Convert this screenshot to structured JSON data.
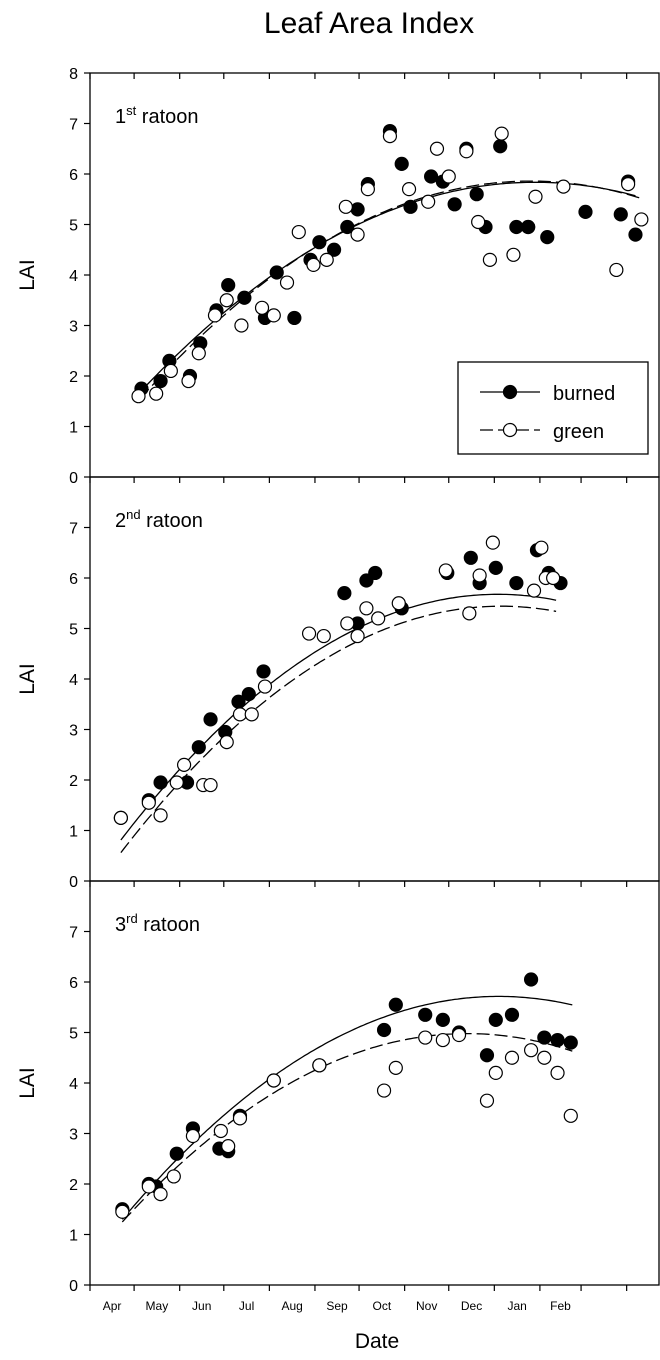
{
  "title": "Leaf Area Index",
  "xlabel": "Date",
  "ylabel": "LAI",
  "x_tick_labels": [
    "Apr",
    "May",
    "Jun",
    "Jul",
    "Aug",
    "Sep",
    "Oct",
    "Nov",
    "Dec",
    "Jan",
    "Feb"
  ],
  "legend": {
    "burned": "burned",
    "green": "green"
  },
  "panels": [
    {
      "label_base": "1",
      "label_sup": "st",
      "label_rest": " ratoon"
    },
    {
      "label_base": "2",
      "label_sup": "nd",
      "label_rest": " ratoon"
    },
    {
      "label_base": "3",
      "label_sup": "rd",
      "label_rest": " ratoon"
    }
  ],
  "chart_data": [
    {
      "type": "scatter",
      "panel": "1st ratoon",
      "xlabel": "Date",
      "ylabel": "LAI",
      "xlim": [
        "Apr",
        "Feb"
      ],
      "ylim": [
        0,
        8
      ],
      "yticks": [
        0,
        1,
        2,
        3,
        4,
        5,
        6,
        7,
        8
      ],
      "legend_position": "right",
      "series": [
        {
          "name": "burned",
          "marker": "filled",
          "line": "solid",
          "x": [
            "Apr 22",
            "Apr 28",
            "May 3",
            "May 10",
            "May 15",
            "May 22",
            "May 28",
            "Jun 8",
            "Jun 16",
            "Jun 24",
            "Jul 1",
            "Jul 10",
            "Jul 15",
            "Jul 22",
            "Jul 28",
            "Aug 5",
            "Aug 12",
            "Aug 20",
            "Aug 27",
            "Sep 2",
            "Sep 10",
            "Sep 14",
            "Sep 25",
            "Oct 1",
            "Oct 8",
            "Oct 13",
            "Oct 17",
            "Nov 3",
            "Nov 10",
            "Nov 14",
            "Nov 28",
            "Dec 8",
            "Dec 15",
            "Jan 1",
            "Jan 21",
            "Feb 3",
            "Feb 14",
            "Feb 17",
            "Feb 20",
            "Feb 24",
            "Mar 1"
          ],
          "y": [
            1.75,
            1.9,
            2.3,
            2.0,
            2.65,
            3.3,
            3.8,
            3.55,
            3.15,
            4.05,
            3.15,
            4.3,
            4.65,
            4.5,
            4.95,
            5.3,
            5.8,
            6.85,
            6.2,
            5.35,
            5.95,
            5.85,
            5.4,
            6.5,
            5.6,
            4.95,
            6.55,
            4.95,
            4.95,
            4.75,
            4.95,
            4.3,
            5.8,
            5.85,
            4.3,
            5.25,
            5.25,
            5.2,
            5.85,
            4.8,
            4.8
          ],
          "points": [
            [
              13,
              1.75
            ],
            [
              26,
              1.9
            ],
            [
              32,
              2.3
            ],
            [
              46,
              2.0
            ],
            [
              53,
              2.65
            ],
            [
              64,
              3.3
            ],
            [
              72,
              3.8
            ],
            [
              83,
              3.55
            ],
            [
              97,
              3.15
            ],
            [
              105,
              4.05
            ],
            [
              117,
              3.15
            ],
            [
              128,
              4.3
            ],
            [
              134,
              4.65
            ],
            [
              144,
              4.5
            ],
            [
              153,
              4.95
            ],
            [
              160,
              5.3
            ],
            [
              167,
              5.8
            ],
            [
              182,
              6.85
            ],
            [
              190,
              6.2
            ],
            [
              196,
              5.35
            ],
            [
              210,
              5.95
            ],
            [
              218,
              5.85
            ],
            [
              226,
              5.4
            ],
            [
              234,
              6.5
            ],
            [
              241,
              5.6
            ],
            [
              247,
              4.95
            ],
            [
              257,
              6.55
            ],
            [
              268,
              4.95
            ],
            [
              276,
              4.95
            ],
            [
              289,
              4.75
            ],
            [
              315,
              5.25
            ],
            [
              276,
              4.95
            ],
            [
              339,
              5.2
            ],
            [
              344,
              5.85
            ],
            [
              349,
              4.8
            ]
          ]
        },
        {
          "name": "green",
          "marker": "open",
          "line": "dashed",
          "points": [
            [
              11,
              1.6
            ],
            [
              23,
              1.65
            ],
            [
              33,
              2.1
            ],
            [
              45,
              1.9
            ],
            [
              52,
              2.45
            ],
            [
              63,
              3.2
            ],
            [
              71,
              3.5
            ],
            [
              81,
              3.0
            ],
            [
              95,
              3.35
            ],
            [
              103,
              3.2
            ],
            [
              112,
              3.85
            ],
            [
              120,
              4.85
            ],
            [
              130,
              4.2
            ],
            [
              139,
              4.3
            ],
            [
              152,
              5.35
            ],
            [
              160,
              4.8
            ],
            [
              167,
              5.7
            ],
            [
              182,
              6.75
            ],
            [
              195,
              5.7
            ],
            [
              208,
              5.45
            ],
            [
              214,
              6.5
            ],
            [
              222,
              5.95
            ],
            [
              234,
              6.45
            ],
            [
              242,
              5.05
            ],
            [
              250,
              4.3
            ],
            [
              258,
              6.8
            ],
            [
              266,
              4.4
            ],
            [
              281,
              5.55
            ],
            [
              300,
              5.75
            ],
            [
              336,
              4.1
            ],
            [
              344,
              5.8
            ],
            [
              353,
              5.1
            ]
          ]
        }
      ],
      "fit_curves": [
        {
          "series": "burned",
          "x": [
            7,
            349
          ],
          "poly": [
            1.3,
            0.0323,
            -5.75e-05
          ]
        },
        {
          "series": "green",
          "x": [
            12,
            353
          ],
          "poly": [
            1.15,
            0.0339,
            -6.1e-05
          ]
        }
      ]
    },
    {
      "type": "scatter",
      "panel": "2nd ratoon",
      "xlabel": "Date",
      "ylabel": "LAI",
      "xlim": [
        "Apr",
        "Feb"
      ],
      "ylim": [
        0,
        8
      ],
      "yticks": [
        0,
        1,
        2,
        3,
        4,
        5,
        6,
        7
      ],
      "series": [
        {
          "name": "burned",
          "marker": "filled",
          "line": "solid",
          "points": [
            [
              -1,
              1.25
            ],
            [
              18,
              1.6
            ],
            [
              26,
              1.95
            ],
            [
              44,
              1.95
            ],
            [
              52,
              2.65
            ],
            [
              60,
              3.2
            ],
            [
              70,
              2.95
            ],
            [
              79,
              3.55
            ],
            [
              86,
              3.7
            ],
            [
              96,
              4.15
            ],
            [
              151,
              5.7
            ],
            [
              160,
              5.1
            ],
            [
              166,
              5.95
            ],
            [
              172,
              6.1
            ],
            [
              190,
              5.4
            ],
            [
              221,
              6.1
            ],
            [
              237,
              6.4
            ],
            [
              243,
              5.9
            ],
            [
              254,
              6.2
            ],
            [
              268,
              5.9
            ],
            [
              282,
              6.55
            ],
            [
              290,
              6.1
            ],
            [
              298,
              5.9
            ]
          ]
        },
        {
          "name": "green",
          "marker": "open",
          "line": "dashed",
          "points": [
            [
              -1,
              1.25
            ],
            [
              18,
              1.55
            ],
            [
              26,
              1.3
            ],
            [
              37,
              1.95
            ],
            [
              42,
              2.3
            ],
            [
              55,
              1.9
            ],
            [
              60,
              1.9
            ],
            [
              71,
              2.75
            ],
            [
              80,
              3.3
            ],
            [
              88,
              3.3
            ],
            [
              97,
              3.85
            ],
            [
              127,
              4.9
            ],
            [
              137,
              4.85
            ],
            [
              153,
              5.1
            ],
            [
              160,
              4.85
            ],
            [
              166,
              5.4
            ],
            [
              174,
              5.2
            ],
            [
              188,
              5.5
            ],
            [
              220,
              6.15
            ],
            [
              236,
              5.3
            ],
            [
              243,
              6.05
            ],
            [
              252,
              6.7
            ],
            [
              280,
              5.75
            ],
            [
              285,
              6.6
            ],
            [
              288,
              6.0
            ],
            [
              293,
              6.0
            ]
          ]
        }
      ],
      "fit_curves": [
        {
          "series": "burned",
          "x": [
            -1,
            296
          ],
          "poly": [
            0.85,
            0.0378,
            -7.4e-05
          ]
        },
        {
          "series": "green",
          "x": [
            -1,
            296
          ],
          "poly": [
            0.6,
            0.0376,
            -7.3e-05
          ]
        }
      ]
    },
    {
      "type": "scatter",
      "panel": "3rd ratoon",
      "xlabel": "Date",
      "ylabel": "LAI",
      "xlim": [
        "Apr",
        "Feb"
      ],
      "ylim": [
        0,
        8
      ],
      "yticks": [
        0,
        1,
        2,
        3,
        4,
        5,
        6,
        7
      ],
      "series": [
        {
          "name": "burned",
          "marker": "filled",
          "line": "solid",
          "points": [
            [
              0,
              1.5
            ],
            [
              18,
              2.0
            ],
            [
              23,
              1.95
            ],
            [
              37,
              2.6
            ],
            [
              48,
              3.1
            ],
            [
              66,
              2.7
            ],
            [
              72,
              2.65
            ],
            [
              80,
              3.35
            ],
            [
              103,
              4.05
            ],
            [
              134,
              4.35
            ],
            [
              178,
              5.05
            ],
            [
              186,
              5.55
            ],
            [
              206,
              5.35
            ],
            [
              218,
              5.25
            ],
            [
              229,
              5.0
            ],
            [
              248,
              4.55
            ],
            [
              254,
              5.25
            ],
            [
              265,
              5.35
            ],
            [
              278,
              6.05
            ],
            [
              287,
              4.9
            ],
            [
              296,
              4.85
            ],
            [
              305,
              4.8
            ]
          ]
        },
        {
          "name": "green",
          "marker": "open",
          "line": "dashed",
          "points": [
            [
              0,
              1.45
            ],
            [
              18,
              1.95
            ],
            [
              26,
              1.8
            ],
            [
              35,
              2.15
            ],
            [
              48,
              2.95
            ],
            [
              67,
              3.05
            ],
            [
              72,
              2.75
            ],
            [
              80,
              3.3
            ],
            [
              103,
              4.05
            ],
            [
              134,
              4.35
            ],
            [
              178,
              3.85
            ],
            [
              186,
              4.3
            ],
            [
              206,
              4.9
            ],
            [
              218,
              4.85
            ],
            [
              229,
              4.95
            ],
            [
              248,
              3.65
            ],
            [
              254,
              4.2
            ],
            [
              265,
              4.5
            ],
            [
              278,
              4.65
            ],
            [
              287,
              4.5
            ],
            [
              296,
              4.2
            ],
            [
              305,
              3.35
            ]
          ]
        }
      ],
      "fit_curves": [
        {
          "series": "burned",
          "x": [
            0,
            306
          ],
          "poly": [
            1.3,
            0.0345,
            -6.74e-05
          ]
        },
        {
          "series": "green",
          "x": [
            0,
            306
          ],
          "poly": [
            1.25,
            0.0318,
            -6.78e-05
          ]
        }
      ]
    }
  ]
}
